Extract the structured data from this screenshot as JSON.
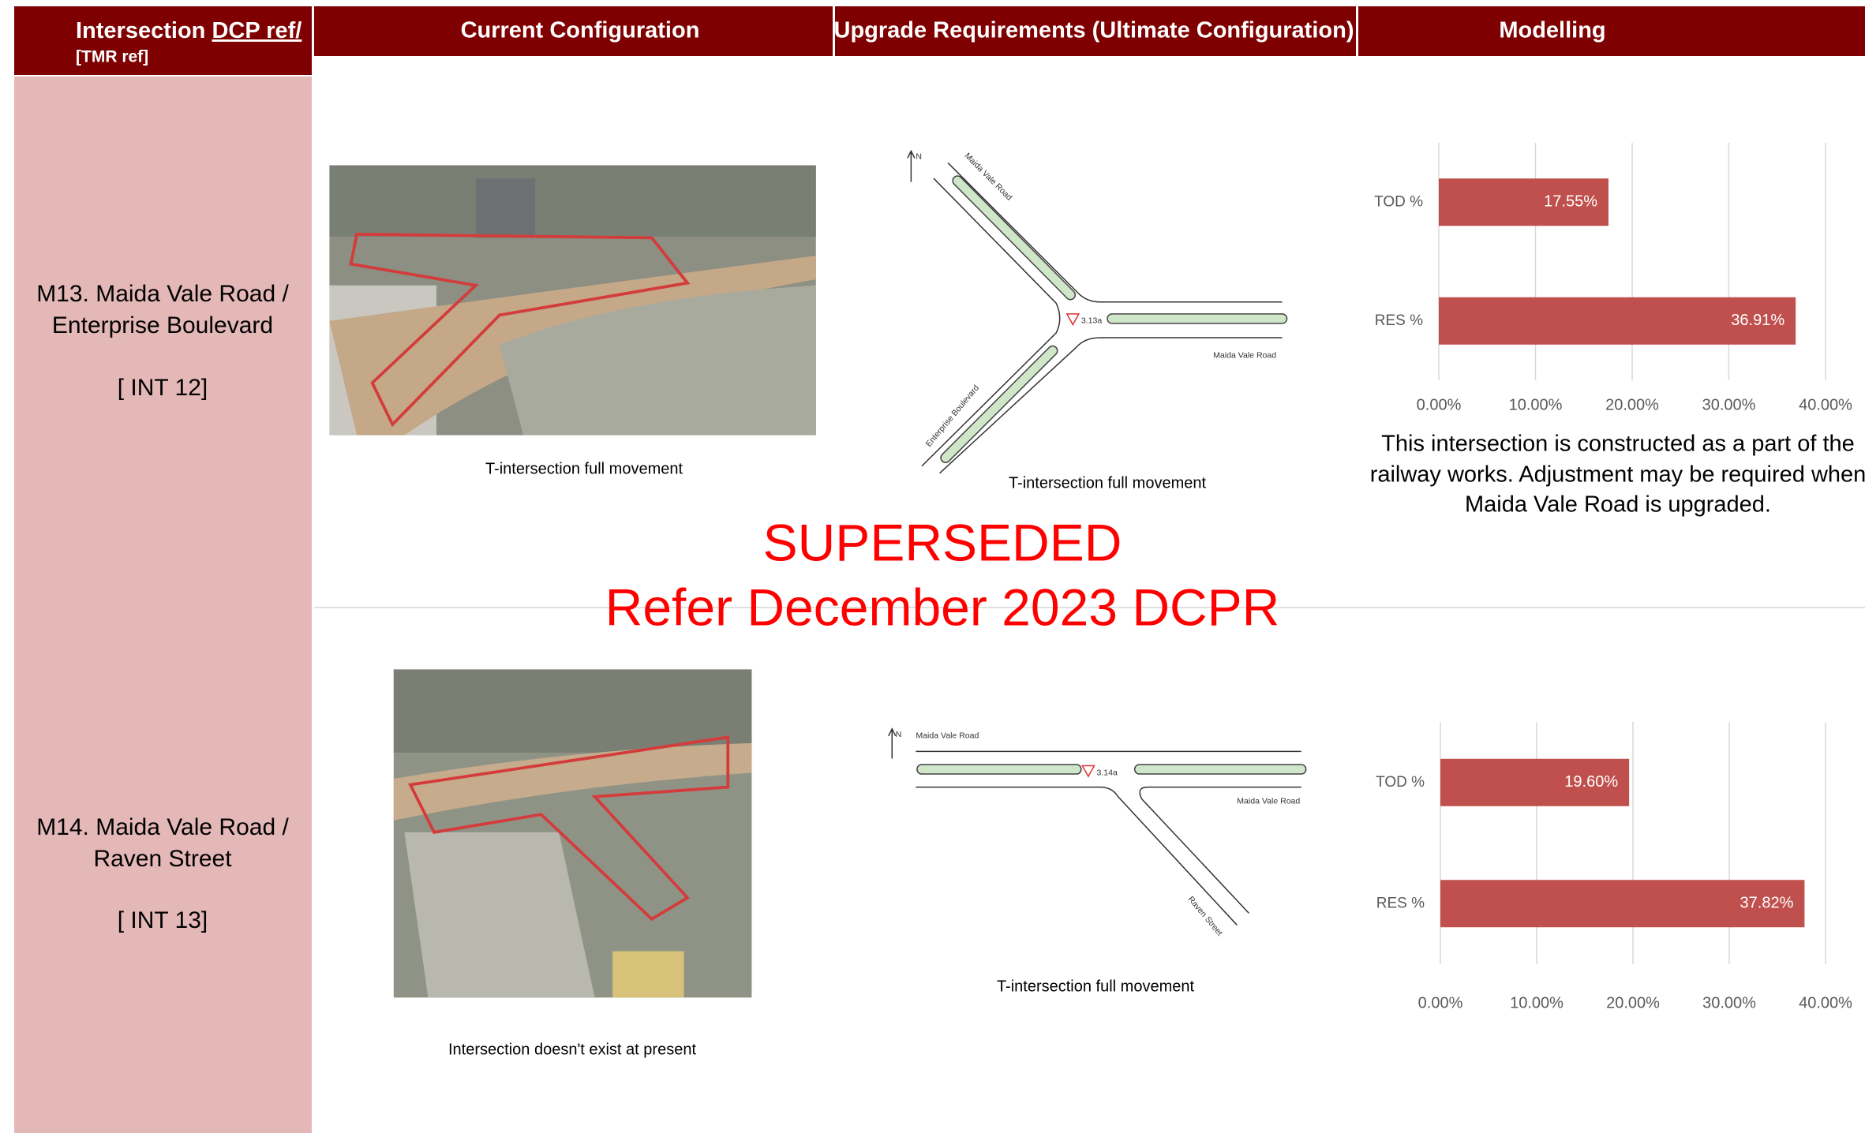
{
  "header": {
    "title": "Intersection",
    "ref": "DCP ref/",
    "tmr": "[TMR ref]",
    "columns": [
      "Current Configuration",
      "Upgrade Requirements (Ultimate Configuration)",
      "Modelling"
    ]
  },
  "rows": [
    {
      "intersection": [
        "M13. Maida Vale Road /",
        "Enterprise Boulevard"
      ],
      "ref": "[ INT 12]",
      "current_caption": "T-intersection full movement",
      "upgrade_caption": "T-intersection full movement",
      "diagram": {
        "north": "N",
        "node": "3.13a",
        "labels": [
          "Maida Vale Road",
          "Maida Vale Road",
          "Enterprise Boulevard"
        ]
      },
      "chart": {
        "type": "bar",
        "orientation": "horizontal",
        "categories": [
          "TOD %",
          "RES %"
        ],
        "values": [
          17.55,
          36.91
        ],
        "value_labels": [
          "17.55%",
          "36.91%"
        ],
        "color": "#c0504d",
        "xlim": [
          0,
          40
        ],
        "xticks": [
          {
            "value": 0,
            "label": "0.00%"
          },
          {
            "value": 10,
            "label": "10.00%"
          },
          {
            "value": 20,
            "label": "20.00%"
          },
          {
            "value": 30,
            "label": "30.00%"
          },
          {
            "value": 40,
            "label": "40.00%"
          }
        ],
        "grid": true
      },
      "note": [
        "This intersection is constructed as a part of the",
        "railway works. Adjustment may be required when",
        "Maida Vale Road is upgraded."
      ]
    },
    {
      "intersection": [
        "M14. Maida Vale Road /",
        "Raven Street"
      ],
      "ref": "[ INT 13]",
      "current_caption": "Intersection doesn't exist at present",
      "upgrade_caption": "T-intersection full movement",
      "diagram": {
        "north": "N",
        "node": "3.14a",
        "labels": [
          "Maida Vale Road",
          "Maida Vale Road",
          "Raven Street"
        ]
      },
      "chart": {
        "type": "bar",
        "orientation": "horizontal",
        "categories": [
          "TOD %",
          "RES %"
        ],
        "values": [
          19.6,
          37.82
        ],
        "value_labels": [
          "19.60%",
          "37.82%"
        ],
        "color": "#c0504d",
        "xlim": [
          0,
          40
        ],
        "xticks": [
          {
            "value": 0,
            "label": "0.00%"
          },
          {
            "value": 10,
            "label": "10.00%"
          },
          {
            "value": 20,
            "label": "20.00%"
          },
          {
            "value": 30,
            "label": "30.00%"
          },
          {
            "value": 40,
            "label": "40.00%"
          }
        ],
        "grid": true
      }
    }
  ],
  "watermark": [
    "SUPERSEDED",
    "Refer December 2023 DCPR"
  ]
}
